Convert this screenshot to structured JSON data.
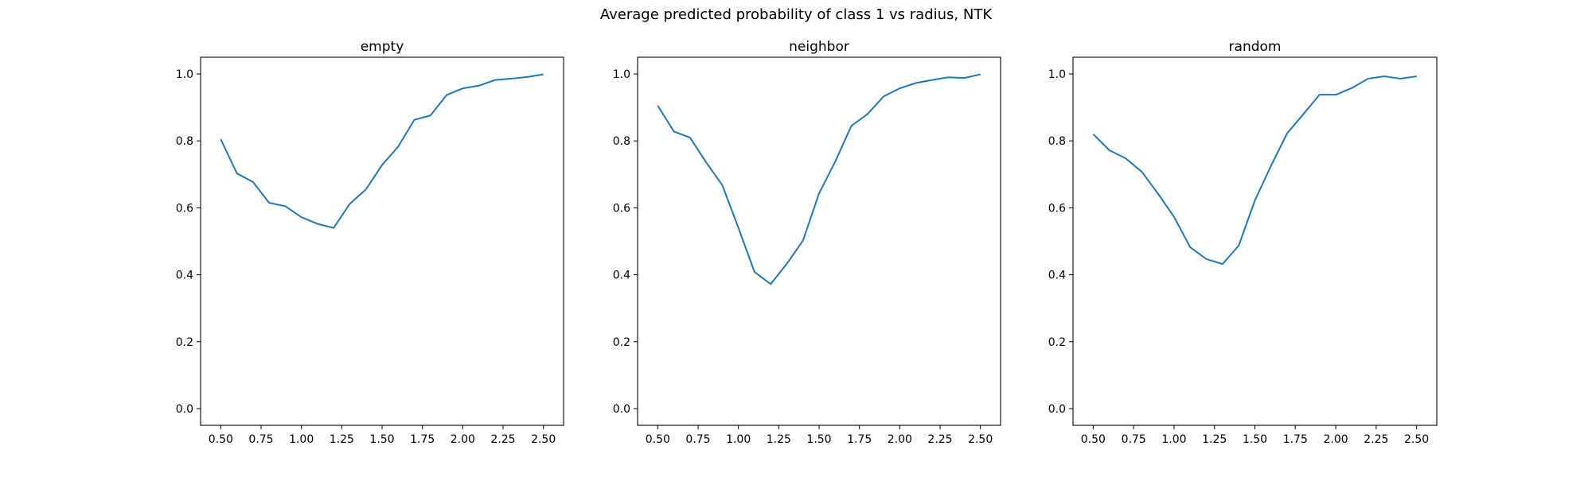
{
  "figure": {
    "suptitle": "Average predicted probability of class 1 vs radius, NTK"
  },
  "chart_data": [
    {
      "type": "line",
      "title": "empty",
      "xlabel": "",
      "ylabel": "",
      "xlim": [
        0.375,
        2.625
      ],
      "ylim": [
        -0.05,
        1.05
      ],
      "xticks": [
        "0.50",
        "0.75",
        "1.00",
        "1.25",
        "1.50",
        "1.75",
        "2.00",
        "2.25",
        "2.50"
      ],
      "yticks": [
        "0.0",
        "0.2",
        "0.4",
        "0.6",
        "0.8",
        "1.0"
      ],
      "series": [
        {
          "name": "empty",
          "color": "#1f77b4",
          "x": [
            0.5,
            0.6,
            0.7,
            0.8,
            0.9,
            1.0,
            1.1,
            1.2,
            1.3,
            1.4,
            1.5,
            1.6,
            1.7,
            1.8,
            1.9,
            2.0,
            2.1,
            2.2,
            2.3,
            2.4,
            2.5
          ],
          "y": [
            0.805,
            0.703,
            0.677,
            0.615,
            0.605,
            0.572,
            0.552,
            0.54,
            0.612,
            0.655,
            0.728,
            0.783,
            0.863,
            0.876,
            0.937,
            0.957,
            0.965,
            0.982,
            0.986,
            0.991,
            0.999
          ]
        }
      ]
    },
    {
      "type": "line",
      "title": "neighbor",
      "xlabel": "",
      "ylabel": "",
      "xlim": [
        0.375,
        2.625
      ],
      "ylim": [
        -0.05,
        1.05
      ],
      "xticks": [
        "0.50",
        "0.75",
        "1.00",
        "1.25",
        "1.50",
        "1.75",
        "2.00",
        "2.25",
        "2.50"
      ],
      "yticks": [
        "0.0",
        "0.2",
        "0.4",
        "0.6",
        "0.8",
        "1.0"
      ],
      "series": [
        {
          "name": "neighbor",
          "color": "#1f77b4",
          "x": [
            0.5,
            0.6,
            0.7,
            0.8,
            0.9,
            1.0,
            1.1,
            1.2,
            1.3,
            1.4,
            1.5,
            1.6,
            1.7,
            1.8,
            1.9,
            2.0,
            2.1,
            2.2,
            2.3,
            2.4,
            2.5
          ],
          "y": [
            0.905,
            0.828,
            0.81,
            0.736,
            0.668,
            0.54,
            0.408,
            0.372,
            0.433,
            0.502,
            0.643,
            0.738,
            0.845,
            0.88,
            0.933,
            0.957,
            0.973,
            0.982,
            0.99,
            0.988,
            0.999
          ]
        }
      ]
    },
    {
      "type": "line",
      "title": "random",
      "xlabel": "",
      "ylabel": "",
      "xlim": [
        0.375,
        2.625
      ],
      "ylim": [
        -0.05,
        1.05
      ],
      "xticks": [
        "0.50",
        "0.75",
        "1.00",
        "1.25",
        "1.50",
        "1.75",
        "2.00",
        "2.25",
        "2.50"
      ],
      "yticks": [
        "0.0",
        "0.2",
        "0.4",
        "0.6",
        "0.8",
        "1.0"
      ],
      "series": [
        {
          "name": "random",
          "color": "#1f77b4",
          "x": [
            0.5,
            0.6,
            0.7,
            0.8,
            0.9,
            1.0,
            1.1,
            1.2,
            1.3,
            1.4,
            1.5,
            1.6,
            1.7,
            1.8,
            1.9,
            2.0,
            2.1,
            2.2,
            2.3,
            2.4,
            2.5
          ],
          "y": [
            0.82,
            0.772,
            0.748,
            0.708,
            0.643,
            0.573,
            0.482,
            0.447,
            0.432,
            0.487,
            0.622,
            0.726,
            0.823,
            0.88,
            0.938,
            0.938,
            0.958,
            0.986,
            0.993,
            0.986,
            0.993
          ]
        }
      ]
    }
  ]
}
